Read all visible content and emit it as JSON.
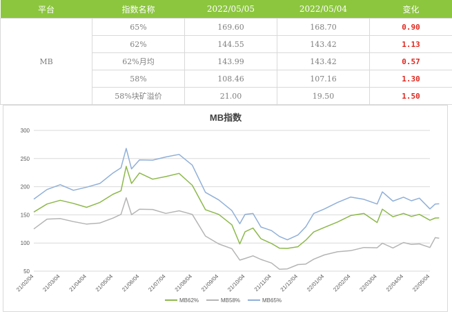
{
  "table": {
    "headers": [
      "平台",
      "指数名称",
      "2022/05/05",
      "2022/05/04",
      "变化"
    ],
    "platform": "MB",
    "rows": [
      {
        "name": "65%",
        "d1": "169.60",
        "d2": "168.70",
        "change": "0.90"
      },
      {
        "name": "62%",
        "d1": "144.55",
        "d2": "143.42",
        "change": "1.13"
      },
      {
        "name": "62%月均",
        "d1": "143.99",
        "d2": "143.42",
        "change": "0.57"
      },
      {
        "name": "58%",
        "d1": "108.46",
        "d2": "107.16",
        "change": "1.30"
      },
      {
        "name": "58%块矿溢价",
        "d1": "21.00",
        "d2": "19.50",
        "change": "1.50"
      }
    ]
  },
  "colors": {
    "header_bg": "#8cc63f",
    "change_text": "#e0261d",
    "mb62": "#8cb84a",
    "mb58": "#b4b4b4",
    "mb65": "#8fafd8"
  },
  "chart_data": {
    "type": "line",
    "title": "MB指数",
    "xlabel": "",
    "ylabel": "",
    "ylim": [
      50,
      300
    ],
    "yticks": [
      50,
      100,
      150,
      200,
      250,
      300
    ],
    "xticks": [
      "21/02/04",
      "21/03/04",
      "21/04/04",
      "21/05/04",
      "21/06/04",
      "21/07/04",
      "21/08/04",
      "21/09/04",
      "21/10/04",
      "21/11/04",
      "21/12/04",
      "22/01/04",
      "22/02/04",
      "22/03/04",
      "22/04/04",
      "22/05/04"
    ],
    "legend_position": "bottom",
    "grid": true,
    "x": [
      0,
      0.5,
      1,
      1.5,
      2,
      2.5,
      3,
      3.3,
      3.5,
      3.7,
      4,
      4.5,
      5,
      5.5,
      6,
      6.5,
      7,
      7.5,
      7.8,
      8,
      8.3,
      8.6,
      9,
      9.3,
      9.6,
      10,
      10.3,
      10.6,
      11,
      11.5,
      12,
      12.5,
      13,
      13.2,
      13.6,
      14,
      14.3,
      14.6,
      15,
      15.2,
      15.35
    ],
    "series": [
      {
        "name": "MB62%",
        "values": [
          155,
          170,
          175,
          168,
          165,
          172,
          185,
          195,
          237,
          205,
          222,
          215,
          218,
          222,
          205,
          160,
          150,
          130,
          100,
          120,
          125,
          110,
          100,
          90,
          88,
          95,
          105,
          118,
          130,
          138,
          148,
          150,
          138,
          160,
          145,
          155,
          148,
          150,
          138,
          146,
          144.55
        ]
      },
      {
        "name": "MB58%",
        "values": [
          125,
          140,
          145,
          138,
          132,
          138,
          145,
          150,
          178,
          152,
          160,
          158,
          155,
          158,
          150,
          110,
          100,
          90,
          68,
          75,
          78,
          70,
          62,
          55,
          54,
          60,
          65,
          72,
          78,
          82,
          88,
          92,
          90,
          102,
          92,
          100,
          95,
          100,
          92,
          108,
          108.46
        ]
      },
      {
        "name": "MB65%",
        "values": [
          178,
          195,
          202,
          196,
          200,
          205,
          222,
          235,
          268,
          230,
          250,
          248,
          252,
          255,
          240,
          190,
          175,
          160,
          135,
          150,
          150,
          130,
          122,
          110,
          108,
          115,
          128,
          150,
          162,
          172,
          180,
          180,
          170,
          190,
          172,
          183,
          175,
          178,
          163,
          170,
          169.6
        ]
      }
    ]
  }
}
